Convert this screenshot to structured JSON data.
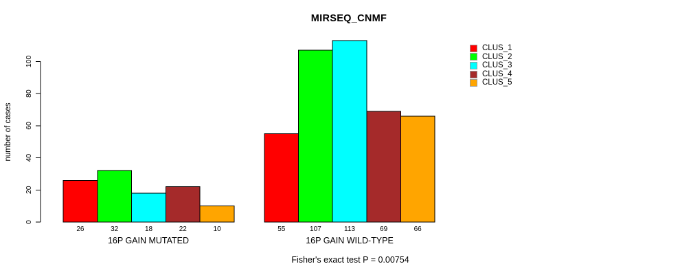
{
  "chart_data": {
    "type": "bar",
    "title": "MIRSEQ_CNMF",
    "ylabel": "number of cases",
    "xlabel": "",
    "ylim": [
      0,
      115
    ],
    "yticks": [
      0,
      20,
      40,
      60,
      80,
      100
    ],
    "grid": false,
    "legend_position": "top-right",
    "series_names": [
      "CLUS_1",
      "CLUS_2",
      "CLUS_3",
      "CLUS_4",
      "CLUS_5"
    ],
    "colors": [
      "#FF0000",
      "#00FF00",
      "#00FFFF",
      "#A52A2A",
      "#FFA500"
    ],
    "bar_border_color": "#000000",
    "groups": [
      {
        "label": "16P GAIN MUTATED",
        "values": [
          26,
          32,
          18,
          22,
          10
        ]
      },
      {
        "label": "16P GAIN WILD-TYPE",
        "values": [
          55,
          107,
          113,
          69,
          66
        ]
      }
    ],
    "bar_value_labels_shown": true,
    "annotation": "Fisher's exact test P = 0.00754"
  }
}
